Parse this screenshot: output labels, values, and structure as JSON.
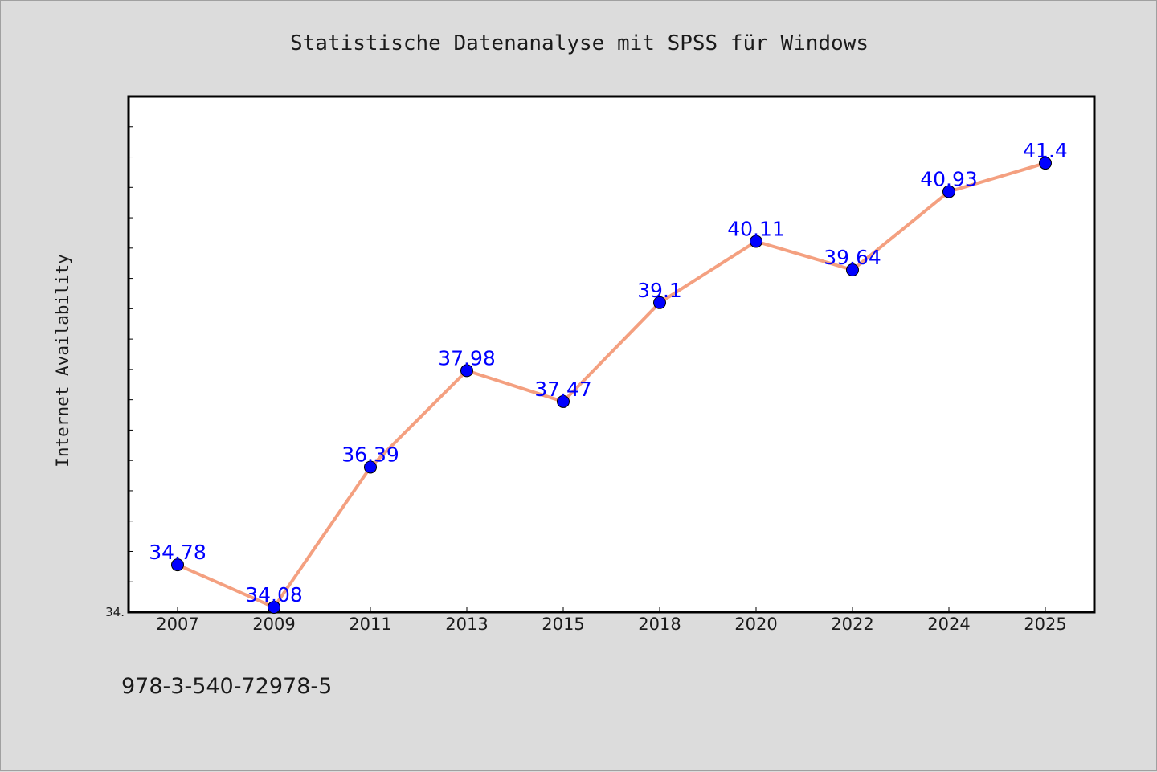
{
  "chart_data": {
    "type": "line",
    "title": "Statistische Datenanalyse mit SPSS für Windows",
    "xlabel": "",
    "ylabel": "Internet Availability",
    "categories": [
      "2007",
      "2009",
      "2011",
      "2013",
      "2015",
      "2018",
      "2020",
      "2022",
      "2024",
      "2025"
    ],
    "series": [
      {
        "values": [
          34.78,
          34.08,
          36.39,
          37.98,
          37.47,
          39.1,
          40.11,
          39.64,
          40.93,
          41.4
        ],
        "labels": [
          "34.78",
          "34.08",
          "36.39",
          "37.98",
          "37.47",
          "39.1",
          "40.11",
          "39.64",
          "40.93",
          "41.4"
        ],
        "line_color": "#f4a080",
        "marker_color": "#0000ff"
      }
    ],
    "ylim": [
      34.0,
      42.5
    ],
    "y_min_label": "34.",
    "y_minor_tick_step": 0.5,
    "grid": false,
    "legend": "none",
    "label_color": "#0000ff"
  },
  "footer": {
    "isbn": "978-3-540-72978-5"
  }
}
